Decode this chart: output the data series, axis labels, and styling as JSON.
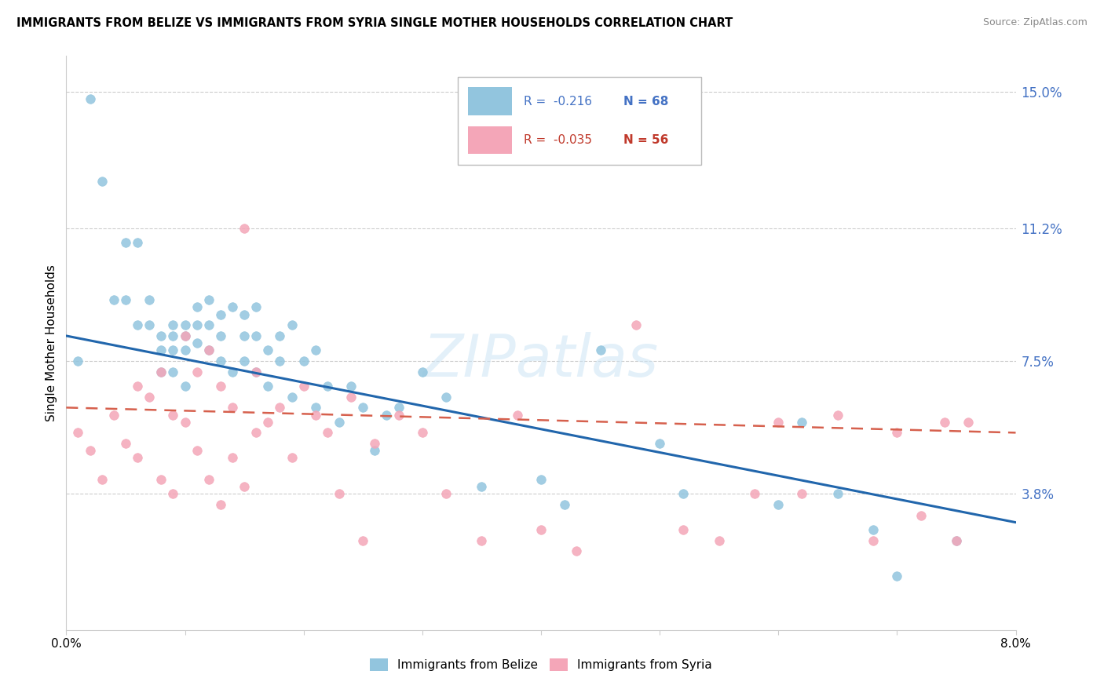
{
  "title": "IMMIGRANTS FROM BELIZE VS IMMIGRANTS FROM SYRIA SINGLE MOTHER HOUSEHOLDS CORRELATION CHART",
  "source": "Source: ZipAtlas.com",
  "ylabel": "Single Mother Households",
  "legend_label1": "Immigrants from Belize",
  "legend_label2": "Immigrants from Syria",
  "R1": "-0.216",
  "N1": "68",
  "R2": "-0.035",
  "N2": "56",
  "xmin": 0.0,
  "xmax": 0.08,
  "ymin": 0.0,
  "ymax": 0.16,
  "yticks": [
    0.038,
    0.075,
    0.112,
    0.15
  ],
  "ytick_labels": [
    "3.8%",
    "7.5%",
    "11.2%",
    "15.0%"
  ],
  "xticks": [
    0.0,
    0.01,
    0.02,
    0.03,
    0.04,
    0.05,
    0.06,
    0.07,
    0.08
  ],
  "xtick_labels": [
    "0.0%",
    "",
    "",
    "",
    "",
    "",
    "",
    "",
    "8.0%"
  ],
  "color_blue": "#92c5de",
  "color_pink": "#f4a6b8",
  "line_color_blue": "#2166ac",
  "line_color_pink": "#d6604d",
  "watermark": "ZIPatlas",
  "blue_line_x0": 0.0,
  "blue_line_y0": 0.082,
  "blue_line_x1": 0.08,
  "blue_line_y1": 0.03,
  "pink_line_x0": 0.0,
  "pink_line_y0": 0.062,
  "pink_line_x1": 0.08,
  "pink_line_y1": 0.055,
  "blue_scatter_x": [
    0.001,
    0.002,
    0.003,
    0.004,
    0.005,
    0.005,
    0.006,
    0.006,
    0.007,
    0.007,
    0.008,
    0.008,
    0.008,
    0.009,
    0.009,
    0.009,
    0.009,
    0.01,
    0.01,
    0.01,
    0.01,
    0.011,
    0.011,
    0.011,
    0.012,
    0.012,
    0.012,
    0.013,
    0.013,
    0.013,
    0.014,
    0.014,
    0.015,
    0.015,
    0.015,
    0.016,
    0.016,
    0.016,
    0.017,
    0.017,
    0.018,
    0.018,
    0.019,
    0.019,
    0.02,
    0.021,
    0.021,
    0.022,
    0.023,
    0.024,
    0.025,
    0.026,
    0.027,
    0.028,
    0.03,
    0.032,
    0.035,
    0.04,
    0.042,
    0.045,
    0.05,
    0.052,
    0.06,
    0.062,
    0.065,
    0.068,
    0.07,
    0.075
  ],
  "blue_scatter_y": [
    0.075,
    0.148,
    0.125,
    0.092,
    0.108,
    0.092,
    0.108,
    0.085,
    0.092,
    0.085,
    0.082,
    0.078,
    0.072,
    0.085,
    0.082,
    0.078,
    0.072,
    0.085,
    0.082,
    0.078,
    0.068,
    0.09,
    0.085,
    0.08,
    0.092,
    0.085,
    0.078,
    0.088,
    0.082,
    0.075,
    0.09,
    0.072,
    0.088,
    0.082,
    0.075,
    0.09,
    0.082,
    0.072,
    0.078,
    0.068,
    0.082,
    0.075,
    0.085,
    0.065,
    0.075,
    0.078,
    0.062,
    0.068,
    0.058,
    0.068,
    0.062,
    0.05,
    0.06,
    0.062,
    0.072,
    0.065,
    0.04,
    0.042,
    0.035,
    0.078,
    0.052,
    0.038,
    0.035,
    0.058,
    0.038,
    0.028,
    0.015,
    0.025
  ],
  "pink_scatter_x": [
    0.001,
    0.002,
    0.003,
    0.004,
    0.005,
    0.006,
    0.006,
    0.007,
    0.008,
    0.008,
    0.009,
    0.009,
    0.01,
    0.01,
    0.011,
    0.011,
    0.012,
    0.012,
    0.013,
    0.013,
    0.014,
    0.014,
    0.015,
    0.015,
    0.016,
    0.016,
    0.017,
    0.018,
    0.019,
    0.02,
    0.021,
    0.022,
    0.023,
    0.024,
    0.025,
    0.026,
    0.028,
    0.03,
    0.032,
    0.035,
    0.038,
    0.04,
    0.043,
    0.048,
    0.052,
    0.055,
    0.058,
    0.06,
    0.062,
    0.065,
    0.068,
    0.07,
    0.072,
    0.074,
    0.075,
    0.076
  ],
  "pink_scatter_y": [
    0.055,
    0.05,
    0.042,
    0.06,
    0.052,
    0.068,
    0.048,
    0.065,
    0.072,
    0.042,
    0.06,
    0.038,
    0.082,
    0.058,
    0.072,
    0.05,
    0.078,
    0.042,
    0.068,
    0.035,
    0.062,
    0.048,
    0.112,
    0.04,
    0.072,
    0.055,
    0.058,
    0.062,
    0.048,
    0.068,
    0.06,
    0.055,
    0.038,
    0.065,
    0.025,
    0.052,
    0.06,
    0.055,
    0.038,
    0.025,
    0.06,
    0.028,
    0.022,
    0.085,
    0.028,
    0.025,
    0.038,
    0.058,
    0.038,
    0.06,
    0.025,
    0.055,
    0.032,
    0.058,
    0.025,
    0.058
  ]
}
